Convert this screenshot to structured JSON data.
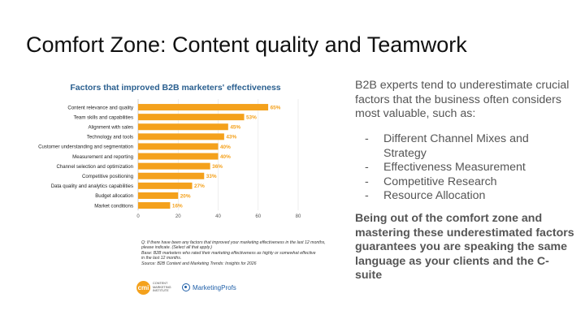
{
  "slide": {
    "title": "Comfort Zone: Content quality and Teamwork"
  },
  "chart_data": {
    "type": "bar",
    "orientation": "horizontal",
    "title": "Factors that improved B2B marketers' effectiveness",
    "categories": [
      "Content relevance and quality",
      "Team skills and capabilities",
      "Alignment with sales",
      "Technology and tools",
      "Customer understanding and segmentation",
      "Measurement and reporting",
      "Channel selection and optimization",
      "Competitive positioning",
      "Data quality and analytics capabilities",
      "Budget allocation",
      "Market conditions"
    ],
    "values": [
      65,
      53,
      45,
      43,
      40,
      40,
      36,
      33,
      27,
      20,
      16
    ],
    "value_labels": [
      "65%",
      "53%",
      "45%",
      "43%",
      "40%",
      "40%",
      "36%",
      "33%",
      "27%",
      "20%",
      "16%"
    ],
    "xlim": [
      0,
      80
    ],
    "xticks": [
      0,
      20,
      40,
      60,
      80
    ],
    "grid": true,
    "bar_color": "#f4a11c",
    "label_color": "#f4a11c",
    "footnote": [
      "Q: If there have been any factors that improved your marketing effectiveness in the last 12 months,",
      "please indicate. (Select all that apply.)",
      "Base: B2B marketers who rated their marketing effectiveness as highly or somewhat effective",
      "in the last 12 months.",
      "Source: B2B Content and Marketing Trends: Insights for 2026"
    ]
  },
  "logos": {
    "cmi_mark": "cmi",
    "cmi_text": "CONTENT MARKETING INSTITUTE",
    "mp_text": "MarketingProfs"
  },
  "right": {
    "intro": "B2B experts tend to underestimate crucial factors that the business often considers most valuable, such as:",
    "bullet_marker": "-",
    "bullets": [
      "Different Channel Mixes and Strategy",
      "Effectiveness Measurement",
      "Competitive Research",
      "Resource Allocation"
    ],
    "closing": "Being out of the comfort zone and mastering these underestimated factors guarantees you are speaking the same language as your clients and the C-suite"
  }
}
